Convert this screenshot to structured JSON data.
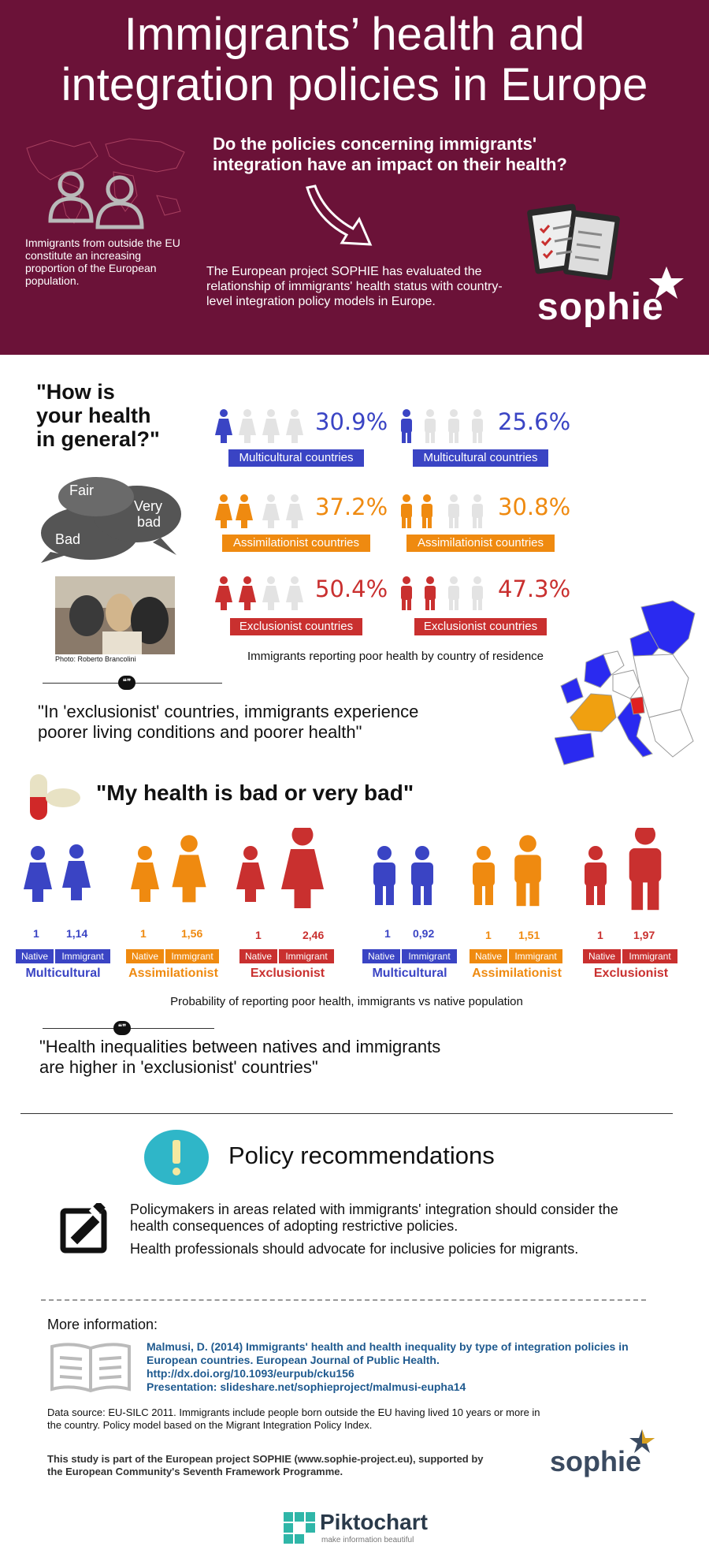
{
  "header": {
    "title_line1": "Immigrants’ health and",
    "title_line2": "integration policies in Europe",
    "question_line1": "Do the policies concerning immigrants'",
    "question_line2": "integration have an impact on their health?",
    "left_text": "Immigrants from outside the EU constitute an increasing proportion of the European population.",
    "project_text": "The European project SOPHIE has evaluated the relationship of immigrants' health status with country-level integration policy models in Europe.",
    "logo_text": "sophie"
  },
  "health_general": {
    "question_line1": "\"How is",
    "question_line2": "your health",
    "question_line3": "in general?\"",
    "bubble_fair": "Fair",
    "bubble_very": "Very",
    "bubble_bad2": "bad",
    "bubble_bad": "Bad",
    "photo_credit": "Photo: Roberto Brancolini",
    "rows": [
      {
        "left_pct": "30.9%",
        "right_pct": "25.6%",
        "label": "Multicultural countries",
        "color": "#3a44c4"
      },
      {
        "left_pct": "37.2%",
        "right_pct": "30.8%",
        "label": "Assimilationist countries",
        "color": "#ef8a10"
      },
      {
        "left_pct": "50.4%",
        "right_pct": "47.3%",
        "label": "Exclusionist countries",
        "color": "#c9302f"
      }
    ],
    "caption": "Immigrants reporting poor health by country of residence",
    "quote_line1": "\"In 'exclusionist' countries, immigrants experience",
    "quote_line2": "poorer living conditions and poorer health\""
  },
  "bad_health": {
    "title": "\"My health is bad or very bad\"",
    "groups": [
      {
        "native": "1",
        "immigrant": "1,14",
        "native_label": "Native",
        "immigrant_label": "Immigrant",
        "group": "Multicultural",
        "color": "#3a44c4"
      },
      {
        "native": "1",
        "immigrant": "1,56",
        "native_label": "Native",
        "immigrant_label": "Immigrant",
        "group": "Assimilationist",
        "color": "#ef8a10"
      },
      {
        "native": "1",
        "immigrant": "2,46",
        "native_label": "Native",
        "immigrant_label": "Immigrant",
        "group": "Exclusionist",
        "color": "#c9302f"
      },
      {
        "native": "1",
        "immigrant": "0,92",
        "native_label": "Native",
        "immigrant_label": "Immigrant",
        "group": "Multicultural",
        "color": "#3a44c4"
      },
      {
        "native": "1",
        "immigrant": "1,51",
        "native_label": "Native",
        "immigrant_label": "Immigrant",
        "group": "Assimilationist",
        "color": "#ef8a10"
      },
      {
        "native": "1",
        "immigrant": "1,97",
        "native_label": "Native",
        "immigrant_label": "Immigrant",
        "group": "Exclusionist",
        "color": "#c9302f"
      }
    ],
    "caption": "Probability of reporting poor health, immigrants vs native population",
    "quote_line1": "\"Health inequalities between natives and immigrants",
    "quote_line2": "are higher in 'exclusionist' countries\""
  },
  "policy": {
    "title": "Policy recommendations",
    "rec1": "Policymakers in areas related with immigrants' integration should consider the health consequences of adopting restrictive policies.",
    "rec2": "Health professionals should advocate for inclusive policies for migrants."
  },
  "more_info": {
    "label": "More information:",
    "ref1": "Malmusi, D. (2014) Immigrants' health and health inequality by type of integration policies in European countries. European Journal of Public Health.",
    "ref2": "http://dx.doi.org/10.1093/eurpub/cku156",
    "ref3": "Presentation: slideshare.net/sophieproject/malmusi-eupha14",
    "data_source": "Data source: EU-SILC 2011. Immigrants include people born outside the EU having lived 10 years or more in the country. Policy model based on the Migrant Integration Policy Index.",
    "study": "This study is part of the European project SOPHIE (www.sophie-project.eu), supported by the European Community's Seventh Framework Programme.",
    "logo_text": "sophie",
    "piktochart": "Piktochart",
    "piktochart_sub": "make information beautiful"
  }
}
